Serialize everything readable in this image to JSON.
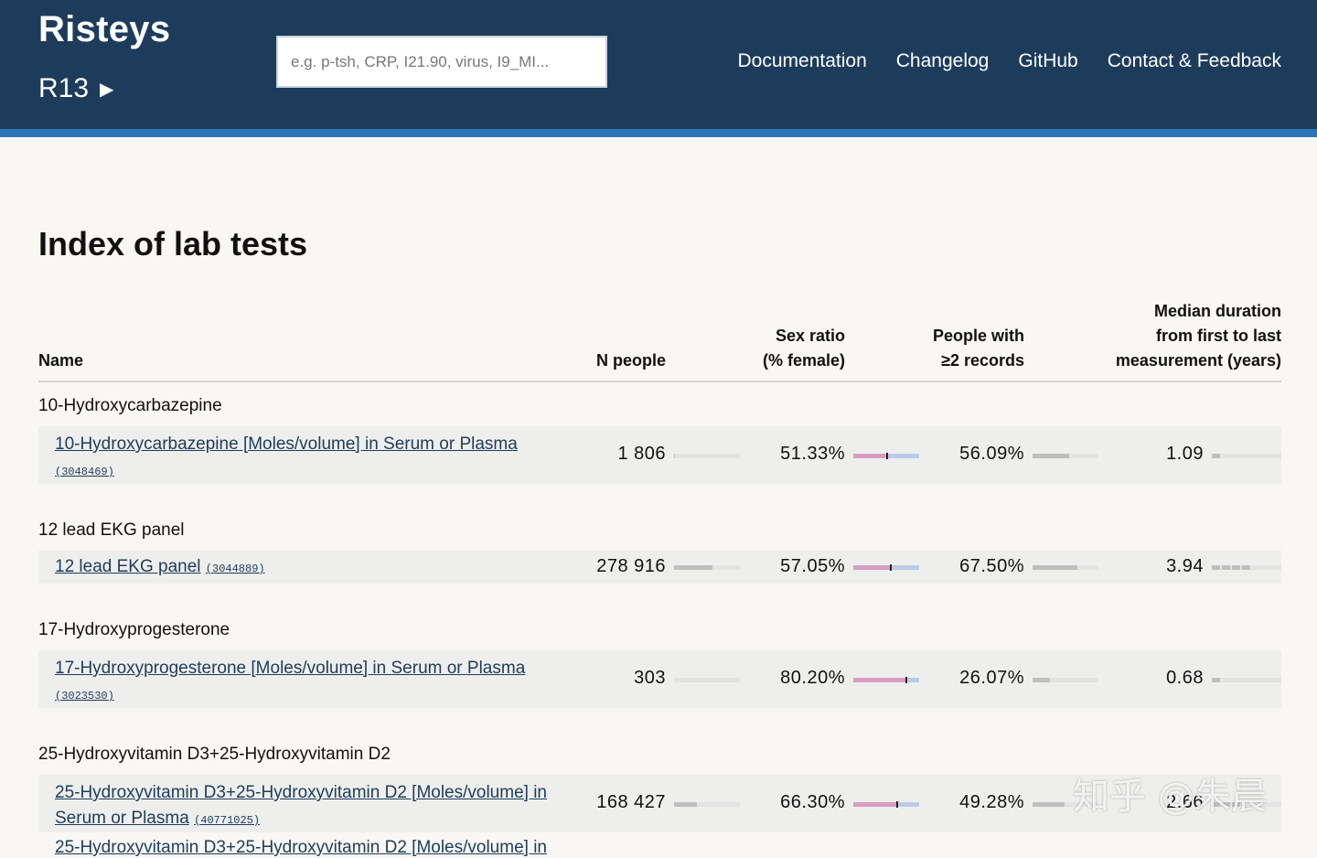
{
  "header": {
    "brand": "Risteys",
    "release": "R13",
    "release_arrow": "▶",
    "search_placeholder": "e.g. p-tsh, CRP, I21.90, virus, I9_MI...",
    "nav": [
      "Documentation",
      "Changelog",
      "GitHub",
      "Contact & Feedback"
    ]
  },
  "page_title": "Index of lab tests",
  "table": {
    "headers": {
      "name": "Name",
      "n_people": "N people",
      "sex_ratio_1": "Sex ratio",
      "sex_ratio_2": "(% female)",
      "records_1": "People with",
      "records_2": "≥2 records",
      "duration_1": "Median duration",
      "duration_2": "from first to last",
      "duration_3": "measurement (years)"
    },
    "groups": [
      {
        "title": "10-Hydroxycarbazepine",
        "test_line1": "10-Hydroxycarbazepine [Moles/volume] in Serum or Plasma",
        "test_line2": "",
        "code": "(3048469)",
        "n_people": "1 806",
        "n_people_fraction": 0.006,
        "sex_ratio": "51.33%",
        "female_fraction": 0.5133,
        "records": "56.09%",
        "records_fraction": 0.5609,
        "duration": "1.09",
        "duration_years": 1.09
      },
      {
        "title": "12 lead EKG panel",
        "test_line1": "12 lead EKG panel",
        "test_line2": "",
        "code": "(3044889)",
        "n_people": "278 916",
        "n_people_fraction": 0.58,
        "sex_ratio": "57.05%",
        "female_fraction": 0.5705,
        "records": "67.50%",
        "records_fraction": 0.675,
        "duration": "3.94",
        "duration_years": 3.94
      },
      {
        "title": "17-Hydroxyprogesterone",
        "test_line1": "17-Hydroxyprogesterone [Moles/volume] in Serum or Plasma",
        "test_line2": "",
        "code": "(3023530)",
        "n_people": "303",
        "n_people_fraction": 0.001,
        "sex_ratio": "80.20%",
        "female_fraction": 0.802,
        "records": "26.07%",
        "records_fraction": 0.2607,
        "duration": "0.68",
        "duration_years": 0.68
      },
      {
        "title": "25-Hydroxyvitamin D3+25-Hydroxyvitamin D2",
        "test_line1": "25-Hydroxyvitamin D3+25-Hydroxyvitamin D2 [Moles/volume] in",
        "test_line2": "Serum or Plasma",
        "code": "(40771025)",
        "n_people": "168 427",
        "n_people_fraction": 0.35,
        "sex_ratio": "66.30%",
        "female_fraction": 0.663,
        "records": "49.28%",
        "records_fraction": 0.4928,
        "duration": "2.66",
        "duration_years": 2.66
      }
    ],
    "partial_next_row": "25-Hydroxyvitamin D3+25-Hydroxyvitamin D2 [Moles/volume] in"
  },
  "watermark": "知乎 @朱晨",
  "colors": {
    "header_bg": "#1d3c5c",
    "accent": "#2e74b8",
    "female": "#d99cc0",
    "male": "#bcc9e8",
    "bar": "#bfbfbf"
  }
}
